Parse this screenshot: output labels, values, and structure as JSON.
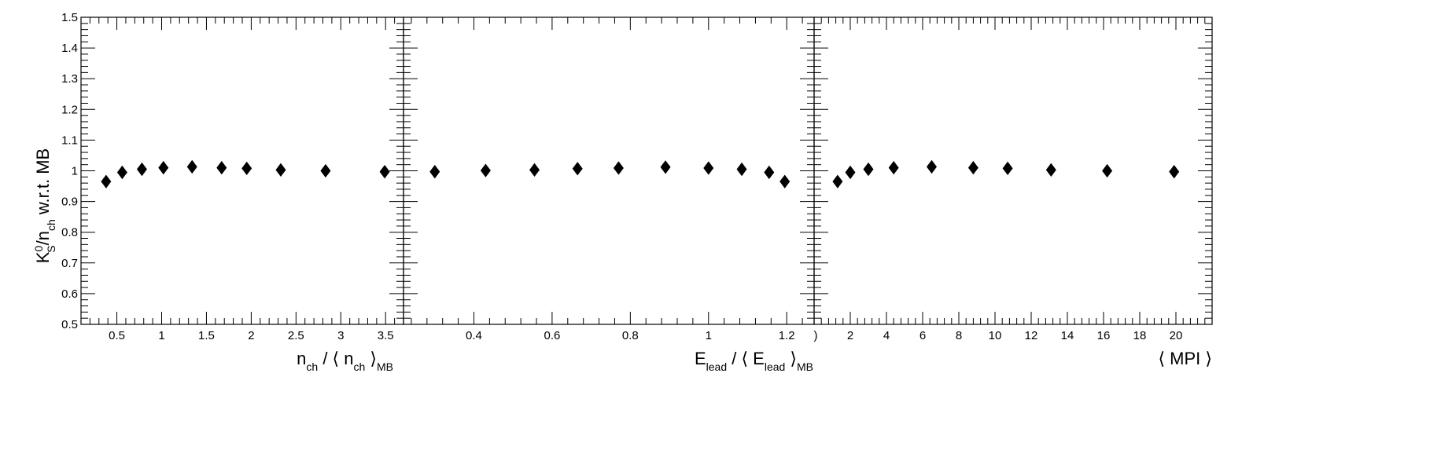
{
  "chart_data": [
    {
      "type": "scatter",
      "marker": "diamond",
      "ylabel": "K_S^0/n_ch w.r.t. MB",
      "ylim": [
        0.5,
        1.5
      ],
      "yticks": [
        0.5,
        0.6,
        0.7,
        0.8,
        0.9,
        1,
        1.1,
        1.2,
        1.3,
        1.4,
        1.5
      ],
      "xlabel": "n_ch / ⟨ n_ch ⟩_MB",
      "xlim": [
        0.1,
        3.7
      ],
      "xticks": [
        0.5,
        1,
        1.5,
        2,
        2.5,
        3,
        3.5
      ],
      "grid": false,
      "points": [
        {
          "x": 0.38,
          "y": 0.965
        },
        {
          "x": 0.56,
          "y": 0.995
        },
        {
          "x": 0.78,
          "y": 1.005
        },
        {
          "x": 1.02,
          "y": 1.01
        },
        {
          "x": 1.34,
          "y": 1.013
        },
        {
          "x": 1.67,
          "y": 1.01
        },
        {
          "x": 1.95,
          "y": 1.008
        },
        {
          "x": 2.33,
          "y": 1.003
        },
        {
          "x": 2.83,
          "y": 1.0
        },
        {
          "x": 3.49,
          "y": 0.997
        }
      ]
    },
    {
      "type": "scatter",
      "marker": "diamond",
      "xlabel": "E_lead / ⟨ E_lead ⟩_MB",
      "xlim": [
        0.22,
        1.27
      ],
      "xticks": [
        0.4,
        0.6,
        0.8,
        1,
        1.2
      ],
      "ylim": [
        0.5,
        1.5
      ],
      "grid": false,
      "points": [
        {
          "x": 0.3,
          "y": 0.997
        },
        {
          "x": 0.43,
          "y": 1.001
        },
        {
          "x": 0.555,
          "y": 1.003
        },
        {
          "x": 0.665,
          "y": 1.007
        },
        {
          "x": 0.77,
          "y": 1.009
        },
        {
          "x": 0.89,
          "y": 1.012
        },
        {
          "x": 1.0,
          "y": 1.009
        },
        {
          "x": 1.085,
          "y": 1.005
        },
        {
          "x": 1.155,
          "y": 0.995
        },
        {
          "x": 1.195,
          "y": 0.965
        }
      ]
    },
    {
      "type": "scatter",
      "marker": "diamond",
      "xlabel": "⟨ MPI ⟩",
      "xlim": [
        0,
        22
      ],
      "xticks": [
        2,
        4,
        6,
        8,
        10,
        12,
        14,
        16,
        18,
        20
      ],
      "ylim": [
        0.5,
        1.5
      ],
      "grid": false,
      "points": [
        {
          "x": 1.3,
          "y": 0.965
        },
        {
          "x": 2.0,
          "y": 0.995
        },
        {
          "x": 3.0,
          "y": 1.005
        },
        {
          "x": 4.4,
          "y": 1.01
        },
        {
          "x": 6.5,
          "y": 1.013
        },
        {
          "x": 8.8,
          "y": 1.01
        },
        {
          "x": 10.7,
          "y": 1.008
        },
        {
          "x": 13.1,
          "y": 1.003
        },
        {
          "x": 16.2,
          "y": 1.0
        },
        {
          "x": 19.9,
          "y": 0.997
        }
      ]
    }
  ],
  "ylabel_parts": {
    "main": "K",
    "sup": "0",
    "sub": "S",
    "mid": "/n",
    "sub2": "ch",
    "tail": " w.r.t. MB"
  },
  "xlabel_parts": [
    {
      "a": "n",
      "asub": "ch",
      "b": " / ⟨ n",
      "bsub": "ch",
      "c": " ⟩",
      "csub": "MB"
    },
    {
      "a": "E",
      "asub": "lead",
      "b": " / ⟨ E",
      "bsub": "lead",
      "c": " ⟩",
      "csub": "MB"
    },
    {
      "a": "⟨ MPI ⟩"
    }
  ],
  "panel3_edge_label": ")"
}
